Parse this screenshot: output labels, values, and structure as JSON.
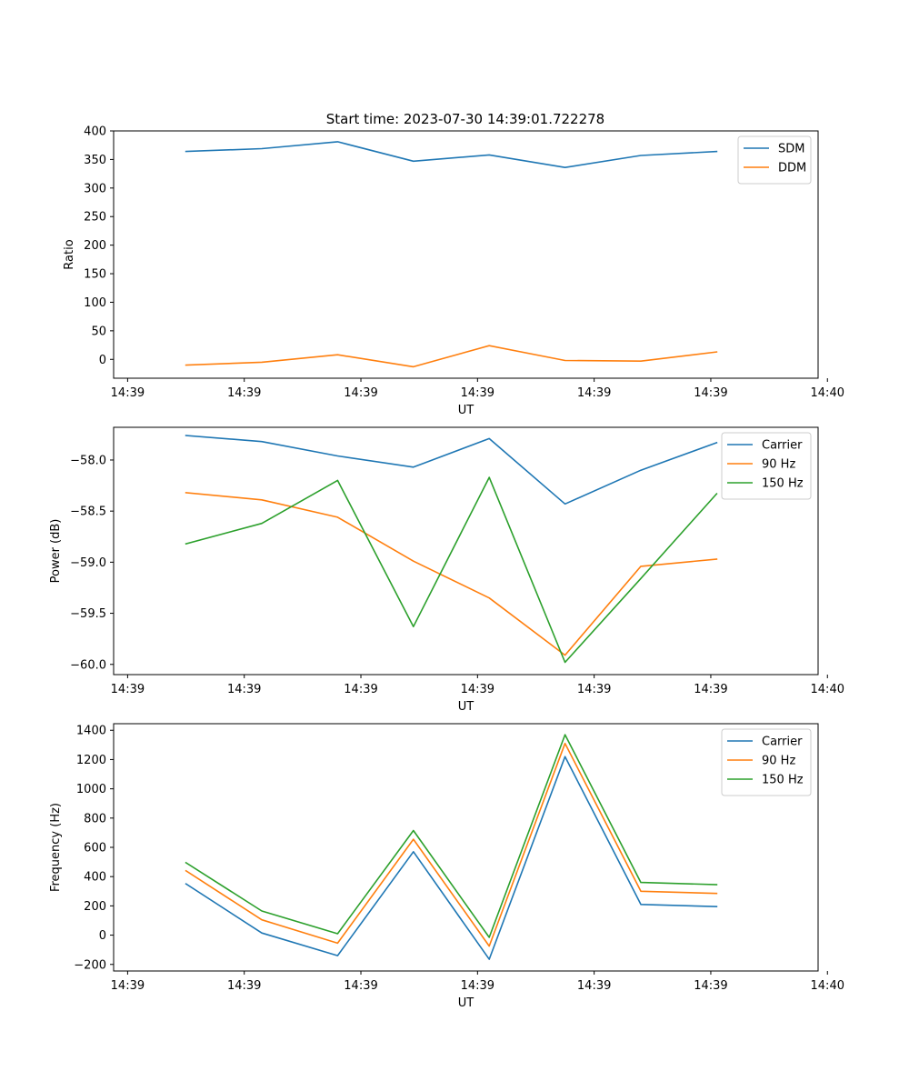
{
  "figure_title": "Start time: 2023-07-30 14:39:01.722278",
  "chart_data": [
    {
      "type": "line",
      "title": "Start time: 2023-07-30 14:39:01.722278",
      "xlabel": "UT",
      "ylabel": "Ratio",
      "xticks": [
        0,
        1,
        2,
        3,
        4,
        5,
        6
      ],
      "xtick_labels": [
        "14:39",
        "14:39",
        "14:39",
        "14:39",
        "14:39",
        "14:39",
        "14:40"
      ],
      "xlim": [
        -0.12,
        5.92
      ],
      "ylim": [
        -33,
        400
      ],
      "yticks": [
        0,
        50,
        100,
        150,
        200,
        250,
        300,
        350,
        400
      ],
      "ytick_labels": [
        "0",
        "50",
        "100",
        "150",
        "200",
        "250",
        "300",
        "350",
        "400"
      ],
      "x": [
        0.5,
        1.15,
        1.8,
        2.45,
        3.1,
        3.75,
        4.4,
        5.05
      ],
      "series": [
        {
          "name": "SDM",
          "color": "#1f77b4",
          "values": [
            364,
            369,
            381,
            347,
            358,
            336,
            357,
            364
          ]
        },
        {
          "name": "DDM",
          "color": "#ff7f0e",
          "values": [
            -10,
            -5,
            8,
            -13,
            24,
            -2,
            -3,
            13
          ]
        }
      ],
      "legend": "top-right"
    },
    {
      "type": "line",
      "title": "",
      "xlabel": "UT",
      "ylabel": "Power (dB)",
      "xticks": [
        0,
        1,
        2,
        3,
        4,
        5,
        6
      ],
      "xtick_labels": [
        "14:39",
        "14:39",
        "14:39",
        "14:39",
        "14:39",
        "14:39",
        "14:40"
      ],
      "xlim": [
        -0.12,
        5.92
      ],
      "ylim": [
        -60.1,
        -57.68
      ],
      "yticks": [
        -60.0,
        -59.5,
        -59.0,
        -58.5,
        -58.0
      ],
      "ytick_labels": [
        "−60.0",
        "−59.5",
        "−59.0",
        "−58.5",
        "−58.0"
      ],
      "x": [
        0.5,
        1.15,
        1.8,
        2.45,
        3.1,
        3.75,
        4.4,
        5.05
      ],
      "series": [
        {
          "name": "Carrier",
          "color": "#1f77b4",
          "values": [
            -57.76,
            -57.82,
            -57.96,
            -58.07,
            -57.79,
            -58.43,
            -58.1,
            -57.83
          ]
        },
        {
          "name": "90 Hz",
          "color": "#ff7f0e",
          "values": [
            -58.32,
            -58.39,
            -58.56,
            -58.99,
            -59.35,
            -59.91,
            -59.04,
            -58.97
          ]
        },
        {
          "name": "150 Hz",
          "color": "#2ca02c",
          "values": [
            -58.82,
            -58.62,
            -58.2,
            -59.63,
            -58.17,
            -59.98,
            -59.16,
            -58.33
          ]
        }
      ],
      "legend": "top-right"
    },
    {
      "type": "line",
      "title": "",
      "xlabel": "UT",
      "ylabel": "Frequency (Hz)",
      "xticks": [
        0,
        1,
        2,
        3,
        4,
        5,
        6
      ],
      "xtick_labels": [
        "14:39",
        "14:39",
        "14:39",
        "14:39",
        "14:39",
        "14:39",
        "14:40"
      ],
      "xlim": [
        -0.12,
        5.92
      ],
      "ylim": [
        -245,
        1445
      ],
      "yticks": [
        -200,
        0,
        200,
        400,
        600,
        800,
        1000,
        1200,
        1400
      ],
      "ytick_labels": [
        "−200",
        "0",
        "200",
        "400",
        "600",
        "800",
        "1000",
        "1200",
        "1400"
      ],
      "x": [
        0.5,
        1.15,
        1.8,
        2.45,
        3.1,
        3.75,
        4.4,
        5.05
      ],
      "series": [
        {
          "name": "Carrier",
          "color": "#1f77b4",
          "values": [
            350,
            15,
            -140,
            570,
            -165,
            1220,
            210,
            195
          ]
        },
        {
          "name": "90 Hz",
          "color": "#ff7f0e",
          "values": [
            440,
            105,
            -55,
            655,
            -75,
            1310,
            300,
            285
          ]
        },
        {
          "name": "150 Hz",
          "color": "#2ca02c",
          "values": [
            495,
            165,
            10,
            715,
            -15,
            1370,
            360,
            345
          ]
        }
      ],
      "legend": "top-right"
    }
  ]
}
